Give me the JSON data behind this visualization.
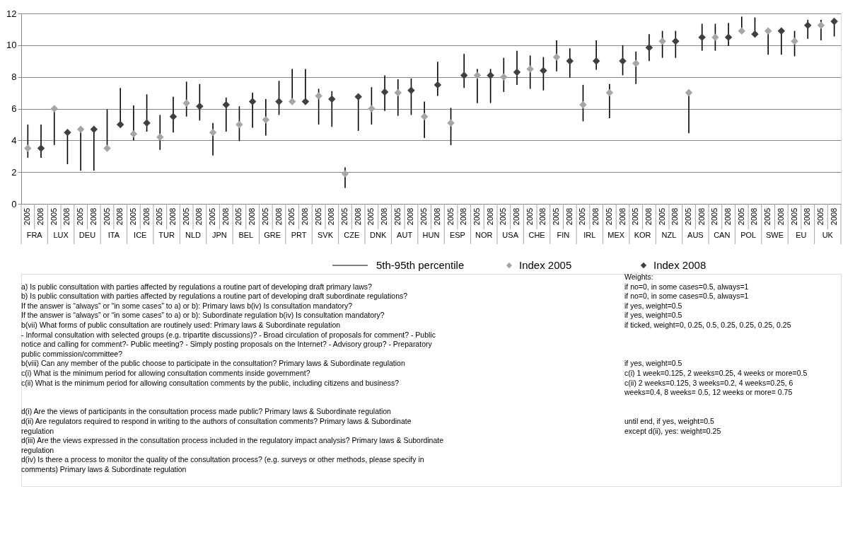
{
  "chart_data": [
    {
      "type": "scatter",
      "categories": [
        "2005",
        "2008",
        "2005",
        "2008",
        "2005",
        "2008",
        "2005",
        "2008",
        "2005",
        "2008",
        "2005",
        "2008",
        "2005",
        "2008",
        "2005",
        "2008",
        "2005",
        "2008",
        "2005",
        "2008",
        "2005",
        "2008",
        "2005",
        "2008",
        "2005",
        "2008",
        "2005",
        "2008",
        "2005",
        "2008",
        "2005",
        "2008",
        "2005",
        "2008",
        "2005",
        "2008",
        "2005",
        "2008",
        "2005",
        "2008",
        "2005",
        "2008",
        "2005",
        "2008",
        "2005",
        "2008",
        "2005",
        "2008",
        "2005",
        "2008",
        "2005",
        "2008",
        "2005",
        "2008",
        "2005",
        "2008",
        "2005",
        "2008",
        "2005",
        "2008",
        "2005",
        "2008"
      ],
      "series": [
        {
          "name": "Index 2005",
          "color": "#a6a6a6",
          "values": [
            3.5,
            null,
            6.0,
            null,
            4.7,
            null,
            3.5,
            null,
            4.4,
            null,
            4.2,
            null,
            6.35,
            null,
            4.5,
            null,
            5.0,
            null,
            5.3,
            null,
            6.45,
            null,
            6.8,
            null,
            1.9,
            null,
            6.0,
            null,
            7.0,
            null,
            5.5,
            null,
            5.1,
            null,
            8.1,
            null,
            8.0,
            null,
            8.5,
            null,
            9.25,
            null,
            6.25,
            null,
            7.0,
            null,
            8.85,
            null,
            10.25,
            null,
            7.0,
            null,
            10.5,
            null,
            10.9,
            null,
            10.9,
            null,
            10.25,
            null,
            11.25,
            null
          ],
          "errors": [
            [
              2.9,
              5.0
            ],
            null,
            [
              3.7,
              6.0
            ],
            null,
            [
              2.1,
              4.7
            ],
            null,
            [
              3.5,
              5.95
            ],
            null,
            [
              4.0,
              6.2
            ],
            null,
            [
              3.4,
              5.6
            ],
            null,
            [
              5.5,
              7.7
            ],
            null,
            [
              3.05,
              5.1
            ],
            null,
            [
              3.95,
              6.15
            ],
            null,
            [
              4.3,
              6.6
            ],
            null,
            [
              6.45,
              8.5
            ],
            null,
            [
              5.0,
              7.25
            ],
            null,
            [
              1.0,
              2.3
            ],
            null,
            [
              5.0,
              7.35
            ],
            null,
            [
              5.55,
              7.85
            ],
            null,
            [
              4.15,
              6.45
            ],
            null,
            [
              3.7,
              6.05
            ],
            null,
            [
              6.35,
              8.5
            ],
            null,
            [
              7.05,
              9.2
            ],
            null,
            [
              7.25,
              9.35
            ],
            null,
            [
              8.35,
              10.3
            ],
            null,
            [
              5.2,
              7.5
            ],
            null,
            [
              5.4,
              7.55
            ],
            null,
            [
              7.55,
              9.6
            ],
            null,
            [
              9.2,
              10.9
            ],
            null,
            [
              4.45,
              7.0
            ],
            null,
            [
              9.65,
              11.35
            ],
            null,
            [
              10.9,
              11.8
            ],
            null,
            [
              9.4,
              10.9
            ],
            null,
            [
              9.3,
              10.9
            ],
            null,
            [
              10.3,
              11.6
            ],
            null
          ]
        },
        {
          "name": "Index 2008",
          "color": "#404040",
          "values": [
            null,
            3.5,
            null,
            4.5,
            null,
            4.7,
            null,
            5.0,
            null,
            5.1,
            null,
            5.5,
            null,
            6.15,
            null,
            6.25,
            null,
            6.45,
            null,
            6.45,
            null,
            6.45,
            null,
            6.6,
            null,
            6.75,
            null,
            7.05,
            null,
            7.15,
            null,
            7.5,
            null,
            8.1,
            null,
            8.1,
            null,
            8.3,
            null,
            8.4,
            null,
            9.0,
            null,
            9.0,
            null,
            9.0,
            null,
            9.85,
            null,
            10.25,
            null,
            10.5,
            null,
            10.5,
            null,
            10.7,
            null,
            10.9,
            null,
            11.25,
            null,
            11.5
          ],
          "errors": [
            null,
            [
              2.9,
              5.0
            ],
            null,
            [
              2.5,
              4.5
            ],
            null,
            [
              2.1,
              4.7
            ],
            null,
            [
              5.0,
              7.3
            ],
            null,
            [
              4.55,
              6.9
            ],
            null,
            [
              4.5,
              6.75
            ],
            null,
            [
              5.25,
              7.55
            ],
            null,
            [
              4.55,
              6.7
            ],
            null,
            [
              4.8,
              7.0
            ],
            null,
            [
              5.6,
              7.75
            ],
            null,
            [
              6.45,
              8.5
            ],
            null,
            [
              4.85,
              7.1
            ],
            null,
            [
              4.6,
              6.75
            ],
            null,
            [
              5.85,
              8.1
            ],
            null,
            [
              5.6,
              7.9
            ],
            null,
            [
              6.8,
              8.95
            ],
            null,
            [
              7.3,
              9.45
            ],
            null,
            [
              6.35,
              8.5
            ],
            null,
            [
              7.5,
              9.65
            ],
            null,
            [
              7.15,
              9.25
            ],
            null,
            [
              7.95,
              9.8
            ],
            null,
            [
              8.45,
              10.3
            ],
            null,
            [
              8.1,
              10.0
            ],
            null,
            [
              9.0,
              10.7
            ],
            null,
            [
              9.2,
              10.9
            ],
            null,
            [
              9.65,
              11.35
            ],
            null,
            [
              9.95,
              11.4
            ],
            null,
            [
              10.7,
              11.75
            ],
            null,
            [
              9.4,
              10.9
            ],
            null,
            [
              10.4,
              11.6
            ],
            null,
            [
              10.55,
              11.5
            ]
          ]
        }
      ],
      "ylim": [
        0,
        12
      ],
      "yticks": [
        0,
        2,
        4,
        6,
        8,
        10,
        12
      ],
      "grid": "y",
      "legend": "bottom",
      "marker": "diamond",
      "annotations": [
        "FRA",
        "LUX",
        "DEU",
        "ITA",
        "ICE",
        "TUR",
        "NLD",
        "JPN",
        "BEL",
        "GRE",
        "PRT",
        "SVK",
        "CZE",
        "DNK",
        "AUT",
        "HUN",
        "ESP",
        "NOR",
        "USA",
        "CHE",
        "FIN",
        "IRL",
        "MEX",
        "KOR",
        "NZL",
        "AUS",
        "CAN",
        "POL",
        "SWE",
        "EU",
        "UK",
        "5th-95th percentile"
      ]
    },
    {
      "type": "other",
      "annotations": [
        "a) Is public consultation with parties affected by regulations a routine part of developing draft primary laws?",
        "b) Is public consultation with parties affected by regulations a routine part of developing draft subordinate regulations?",
        "If the answer is “always” or “in some cases” to a) or b): Primary  laws b(iv) Is consultation mandatory?",
        "If the answer is “always” or “in some cases” to a) or b): Subordinate regulation b(iv) Is consultation mandatory?",
        "b(vii) What forms of public consultation are routinely used: Primary laws & Subordinate regulation",
        "- Informal consultation with selected groups (e.g. tripartite discussions)? - Broad circulation of proposals for comment? - Public",
        "notice and calling for comment?- Public meeting? - Simply posting proposals on the Internet? - Advisory group? - Preparatory",
        "public commission/committee?",
        "b(viii) Can any member of the public choose to participate in the consultation? Primary laws & Subordinate regulation",
        "c(i) What is the minimum period for allowing consultation comments  inside government?",
        "c(ii) What is the minimum period for allowing consultation comments by the public, including citizens and business?",
        "d(i) Are the views of participants in the consultation process made public? Primary laws & Subordinate regulation",
        "d(ii) Are regulators required to respond in writing to the authors of consultation comments? Primary laws & Subordinate",
        "regulation",
        "d(iii) Are the views expressed in the consultation process included in the regulatory impact analysis? Primary laws & Subordinate",
        "regulation",
        "d(iv) Is there a process to monitor the quality of the consultation process? (e.g. surveys or other methods, please specify in",
        "comments) Primary laws & Subordinate regulation"
      ]
    },
    {
      "type": "other",
      "annotations": [
        "Weights:",
        "if no=0, in some cases=0.5,  always=1",
        "if no=0, in some cases=0.5,  always=1",
        "if yes, weight=0.5",
        "if yes, weight=0.5",
        "if ticked, weight=0, 0.25, 0.5, 0.25, 0.25, 0.25, 0.25",
        "if yes, weight=0.5",
        "c(i) 1 week=0.125,  2 weeks=0.25,  4 weeks or more=0.5",
        "c(ii) 2 weeks=0.125,  3 weeks=0.2,  4 weeks=0.25,  6",
        "weeks=0.4,  8 weeks= 0.5,  12 weeks or more= 0.75",
        "until end, if yes, weight=0.5",
        "except d(ii), yes: weight=0.25"
      ]
    }
  ]
}
